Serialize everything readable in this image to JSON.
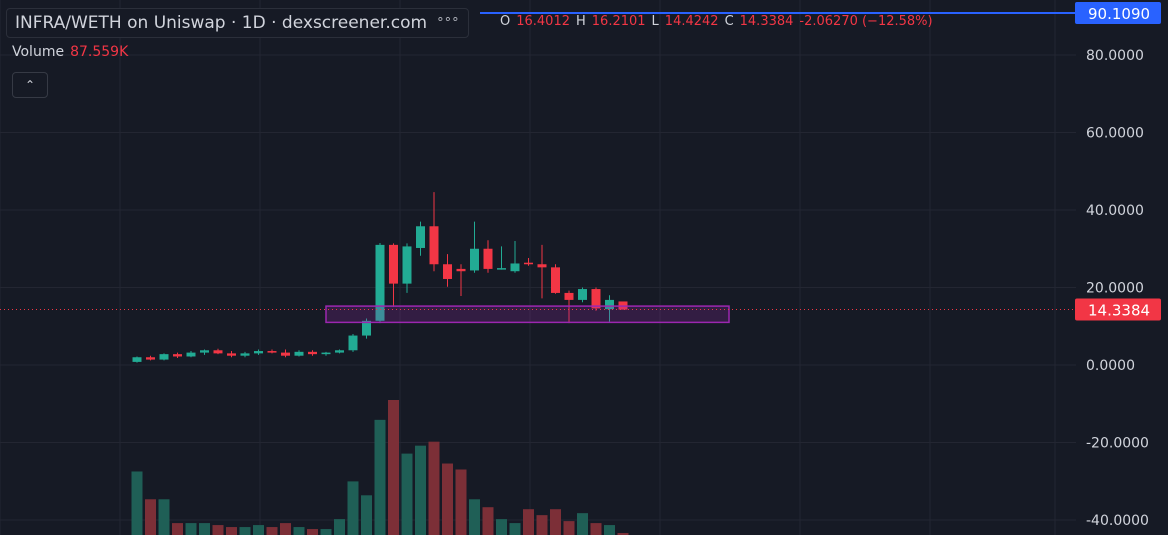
{
  "header": {
    "title": "INFRA/WETH on Uniswap · 1D · dexscreener.com",
    "more_glyph": "°°°",
    "o_label": "O",
    "o_value": "16.4012",
    "h_label": "H",
    "h_value": "16.2101",
    "l_label": "L",
    "l_value": "14.4242",
    "c_label": "C",
    "c_value": "14.3384",
    "change": "-2.06270 (−12.58%)"
  },
  "volume": {
    "label": "Volume",
    "value": "87.559K"
  },
  "collapse_glyph": "⌃",
  "colors": {
    "bg": "#161a25",
    "grid": "#232632",
    "up": "#22ab94",
    "down": "#f23645",
    "vol_up": "#1f5f56",
    "vol_down": "#7c2f37",
    "box": "#9c27b0",
    "top_line": "#2962ff",
    "axis_text": "#d1d4dc"
  },
  "chart_data": {
    "type": "candlestick",
    "yaxis": {
      "min": -40,
      "max": 80,
      "ticks": [
        "80.0000",
        "60.0000",
        "40.0000",
        "20.0000",
        "0.0000",
        "-20.0000",
        "-40.0000"
      ],
      "tick_values": [
        80,
        60,
        40,
        20,
        0,
        -20,
        -40
      ]
    },
    "last_price": {
      "value": 14.3384,
      "label": "14.3384"
    },
    "top_line": {
      "value": 90.109,
      "label": "90.1090"
    },
    "candles": [
      {
        "o": 0.8,
        "h": 2.2,
        "l": 0.6,
        "c": 2.0
      },
      {
        "o": 2.0,
        "h": 2.4,
        "l": 1.2,
        "c": 1.4
      },
      {
        "o": 1.4,
        "h": 3.0,
        "l": 1.2,
        "c": 2.8
      },
      {
        "o": 2.8,
        "h": 3.2,
        "l": 1.8,
        "c": 2.2
      },
      {
        "o": 2.2,
        "h": 3.6,
        "l": 2.0,
        "c": 3.2
      },
      {
        "o": 3.2,
        "h": 4.0,
        "l": 2.6,
        "c": 3.8
      },
      {
        "o": 3.8,
        "h": 4.2,
        "l": 2.8,
        "c": 3.0
      },
      {
        "o": 3.0,
        "h": 3.6,
        "l": 2.0,
        "c": 2.4
      },
      {
        "o": 2.4,
        "h": 3.4,
        "l": 2.0,
        "c": 3.0
      },
      {
        "o": 3.0,
        "h": 4.0,
        "l": 2.6,
        "c": 3.6
      },
      {
        "o": 3.6,
        "h": 4.0,
        "l": 3.0,
        "c": 3.2
      },
      {
        "o": 3.2,
        "h": 4.0,
        "l": 2.0,
        "c": 2.4
      },
      {
        "o": 2.4,
        "h": 3.8,
        "l": 2.2,
        "c": 3.4
      },
      {
        "o": 3.4,
        "h": 3.8,
        "l": 2.4,
        "c": 2.8
      },
      {
        "o": 2.8,
        "h": 3.4,
        "l": 2.4,
        "c": 3.2
      },
      {
        "o": 3.2,
        "h": 4.0,
        "l": 3.0,
        "c": 3.8
      },
      {
        "o": 3.8,
        "h": 8.0,
        "l": 3.4,
        "c": 7.6
      },
      {
        "o": 7.6,
        "h": 12.0,
        "l": 6.8,
        "c": 11.4
      },
      {
        "o": 11.4,
        "h": 31.5,
        "l": 10.8,
        "c": 31.0
      },
      {
        "o": 31.0,
        "h": 31.4,
        "l": 15.0,
        "c": 21.0
      },
      {
        "o": 21.0,
        "h": 31.4,
        "l": 18.6,
        "c": 30.6
      },
      {
        "o": 30.2,
        "h": 37.0,
        "l": 28.2,
        "c": 35.8
      },
      {
        "o": 35.8,
        "h": 44.6,
        "l": 24.2,
        "c": 26.0
      },
      {
        "o": 26.0,
        "h": 28.6,
        "l": 20.2,
        "c": 22.2
      },
      {
        "o": 24.8,
        "h": 26.0,
        "l": 17.8,
        "c": 24.2
      },
      {
        "o": 24.4,
        "h": 37.0,
        "l": 23.8,
        "c": 30.0
      },
      {
        "o": 30.0,
        "h": 32.2,
        "l": 23.8,
        "c": 24.8
      },
      {
        "o": 25.0,
        "h": 30.6,
        "l": 24.6,
        "c": 25.0
      },
      {
        "o": 24.2,
        "h": 32.0,
        "l": 23.8,
        "c": 26.2
      },
      {
        "o": 26.4,
        "h": 27.6,
        "l": 25.6,
        "c": 26.0
      },
      {
        "o": 26.0,
        "h": 31.0,
        "l": 17.2,
        "c": 25.2
      },
      {
        "o": 25.2,
        "h": 26.0,
        "l": 18.4,
        "c": 18.6
      },
      {
        "o": 18.6,
        "h": 19.2,
        "l": 10.8,
        "c": 16.8
      },
      {
        "o": 16.8,
        "h": 20.0,
        "l": 16.2,
        "c": 19.6
      },
      {
        "o": 19.6,
        "h": 20.0,
        "l": 14.0,
        "c": 14.6
      },
      {
        "o": 14.4,
        "h": 18.0,
        "l": 11.2,
        "c": 16.8
      },
      {
        "o": 16.4,
        "h": 16.2,
        "l": 14.4,
        "c": 14.3
      }
    ],
    "volumes": [
      33,
      14,
      13,
      3,
      2,
      2,
      2,
      1,
      1,
      2,
      1,
      3,
      0,
      0,
      0,
      5,
      27,
      20,
      58,
      68,
      41,
      45,
      47,
      36,
      33,
      18,
      14,
      8,
      3,
      13,
      10,
      13,
      7,
      11,
      3,
      3,
      0
    ],
    "volumes_note_scale": [
      32,
      18,
      18,
      6,
      6,
      6,
      5,
      4,
      4,
      5,
      4,
      6,
      4,
      3,
      3,
      8,
      27,
      20,
      58,
      68,
      41,
      45,
      47,
      36,
      33,
      18,
      14,
      8,
      6,
      13,
      10,
      13,
      7,
      11,
      6,
      5,
      1
    ],
    "zone": {
      "from_index": 15,
      "to_index": 44,
      "low": 11.0,
      "high": 15.2
    }
  }
}
